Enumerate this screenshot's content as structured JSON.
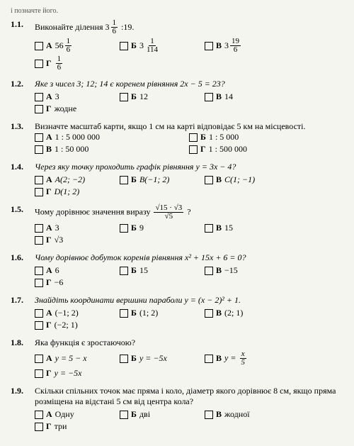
{
  "header": "і позначте його.",
  "questions": {
    "q1_1": {
      "num": "1.1.",
      "text_start": "Виконайте ділення ",
      "text_mixed_whole": "3",
      "text_frac_num": "1",
      "text_frac_den": "6",
      "text_end": ":19.",
      "opts": {
        "a_label": "А",
        "a_whole": "56",
        "a_num": "1",
        "a_den": "6",
        "b_label": "Б",
        "b_whole": "3",
        "b_num": "1",
        "b_den": "114",
        "v_label": "В",
        "v_whole": "3",
        "v_num": "19",
        "v_den": "6",
        "g_label": "Г",
        "g_num": "1",
        "g_den": "6"
      }
    },
    "q1_2": {
      "num": "1.2.",
      "text": "Яке з чисел 3; 12; 14 є коренем рівняння 2x − 5 = 23?",
      "opts": {
        "a_label": "А",
        "a_val": "3",
        "b_label": "Б",
        "b_val": "12",
        "v_label": "В",
        "v_val": "14",
        "g_label": "Г",
        "g_val": "жодне"
      }
    },
    "q1_3": {
      "num": "1.3.",
      "text": "Визначте масштаб карти, якщо 1 см на карті відповідає 5 км на місцевості.",
      "opts": {
        "a_label": "А",
        "a_val": "1 : 5 000 000",
        "b_label": "Б",
        "b_val": "1 : 5 000",
        "v_label": "В",
        "v_val": "1 : 50 000",
        "g_label": "Г",
        "g_val": "1 : 500 000"
      }
    },
    "q1_4": {
      "num": "1.4.",
      "text": "Через яку точку проходить графік рівняння y = 3x − 4?",
      "opts": {
        "a_label": "А",
        "a_val": "A(2; −2)",
        "b_label": "Б",
        "b_val": "B(−1; 2)",
        "v_label": "В",
        "v_val": "C(1; −1)",
        "g_label": "Г",
        "g_val": "D(1; 2)"
      }
    },
    "q1_5": {
      "num": "1.5.",
      "text_start": "Чому дорівнює значення виразу ",
      "frac_num": "√15 · √3",
      "frac_den": "√5",
      "text_end": "?",
      "opts": {
        "a_label": "А",
        "a_val": "3",
        "b_label": "Б",
        "b_val": "9",
        "v_label": "В",
        "v_val": "15",
        "g_label": "Г",
        "g_val": "√3"
      }
    },
    "q1_6": {
      "num": "1.6.",
      "text": "Чому дорівнює добуток коренів рівняння x² + 15x + 6 = 0?",
      "opts": {
        "a_label": "А",
        "a_val": "6",
        "b_label": "Б",
        "b_val": "15",
        "v_label": "В",
        "v_val": "−15",
        "g_label": "Г",
        "g_val": "−6"
      }
    },
    "q1_7": {
      "num": "1.7.",
      "text": "Знайдіть координати вершини параболи y = (x − 2)² + 1.",
      "opts": {
        "a_label": "А",
        "a_val": "(−1; 2)",
        "b_label": "Б",
        "b_val": "(1; 2)",
        "v_label": "В",
        "v_val": "(2; 1)",
        "g_label": "Г",
        "g_val": "(−2; 1)"
      }
    },
    "q1_8": {
      "num": "1.8.",
      "text": "Яка функція є зростаючою?",
      "opts": {
        "a_label": "А",
        "a_val": "y = 5 − x",
        "b_label": "Б",
        "b_val": "y = −5x",
        "v_label": "В",
        "v_pre": "y = ",
        "v_num": "x",
        "v_den": "5",
        "g_label": "Г",
        "g_val": "y = −5x"
      }
    },
    "q1_9": {
      "num": "1.9.",
      "text": "Скільки спільних точок має пряма і коло, діаметр якого дорівнює 8 см, якщо пряма розміщена на відстані 5 см від центра кола?",
      "opts": {
        "a_label": "А",
        "a_val": "Одну",
        "b_label": "Б",
        "b_val": "дві",
        "v_label": "В",
        "v_val": "жодної",
        "g_label": "Г",
        "g_val": "три"
      }
    }
  }
}
